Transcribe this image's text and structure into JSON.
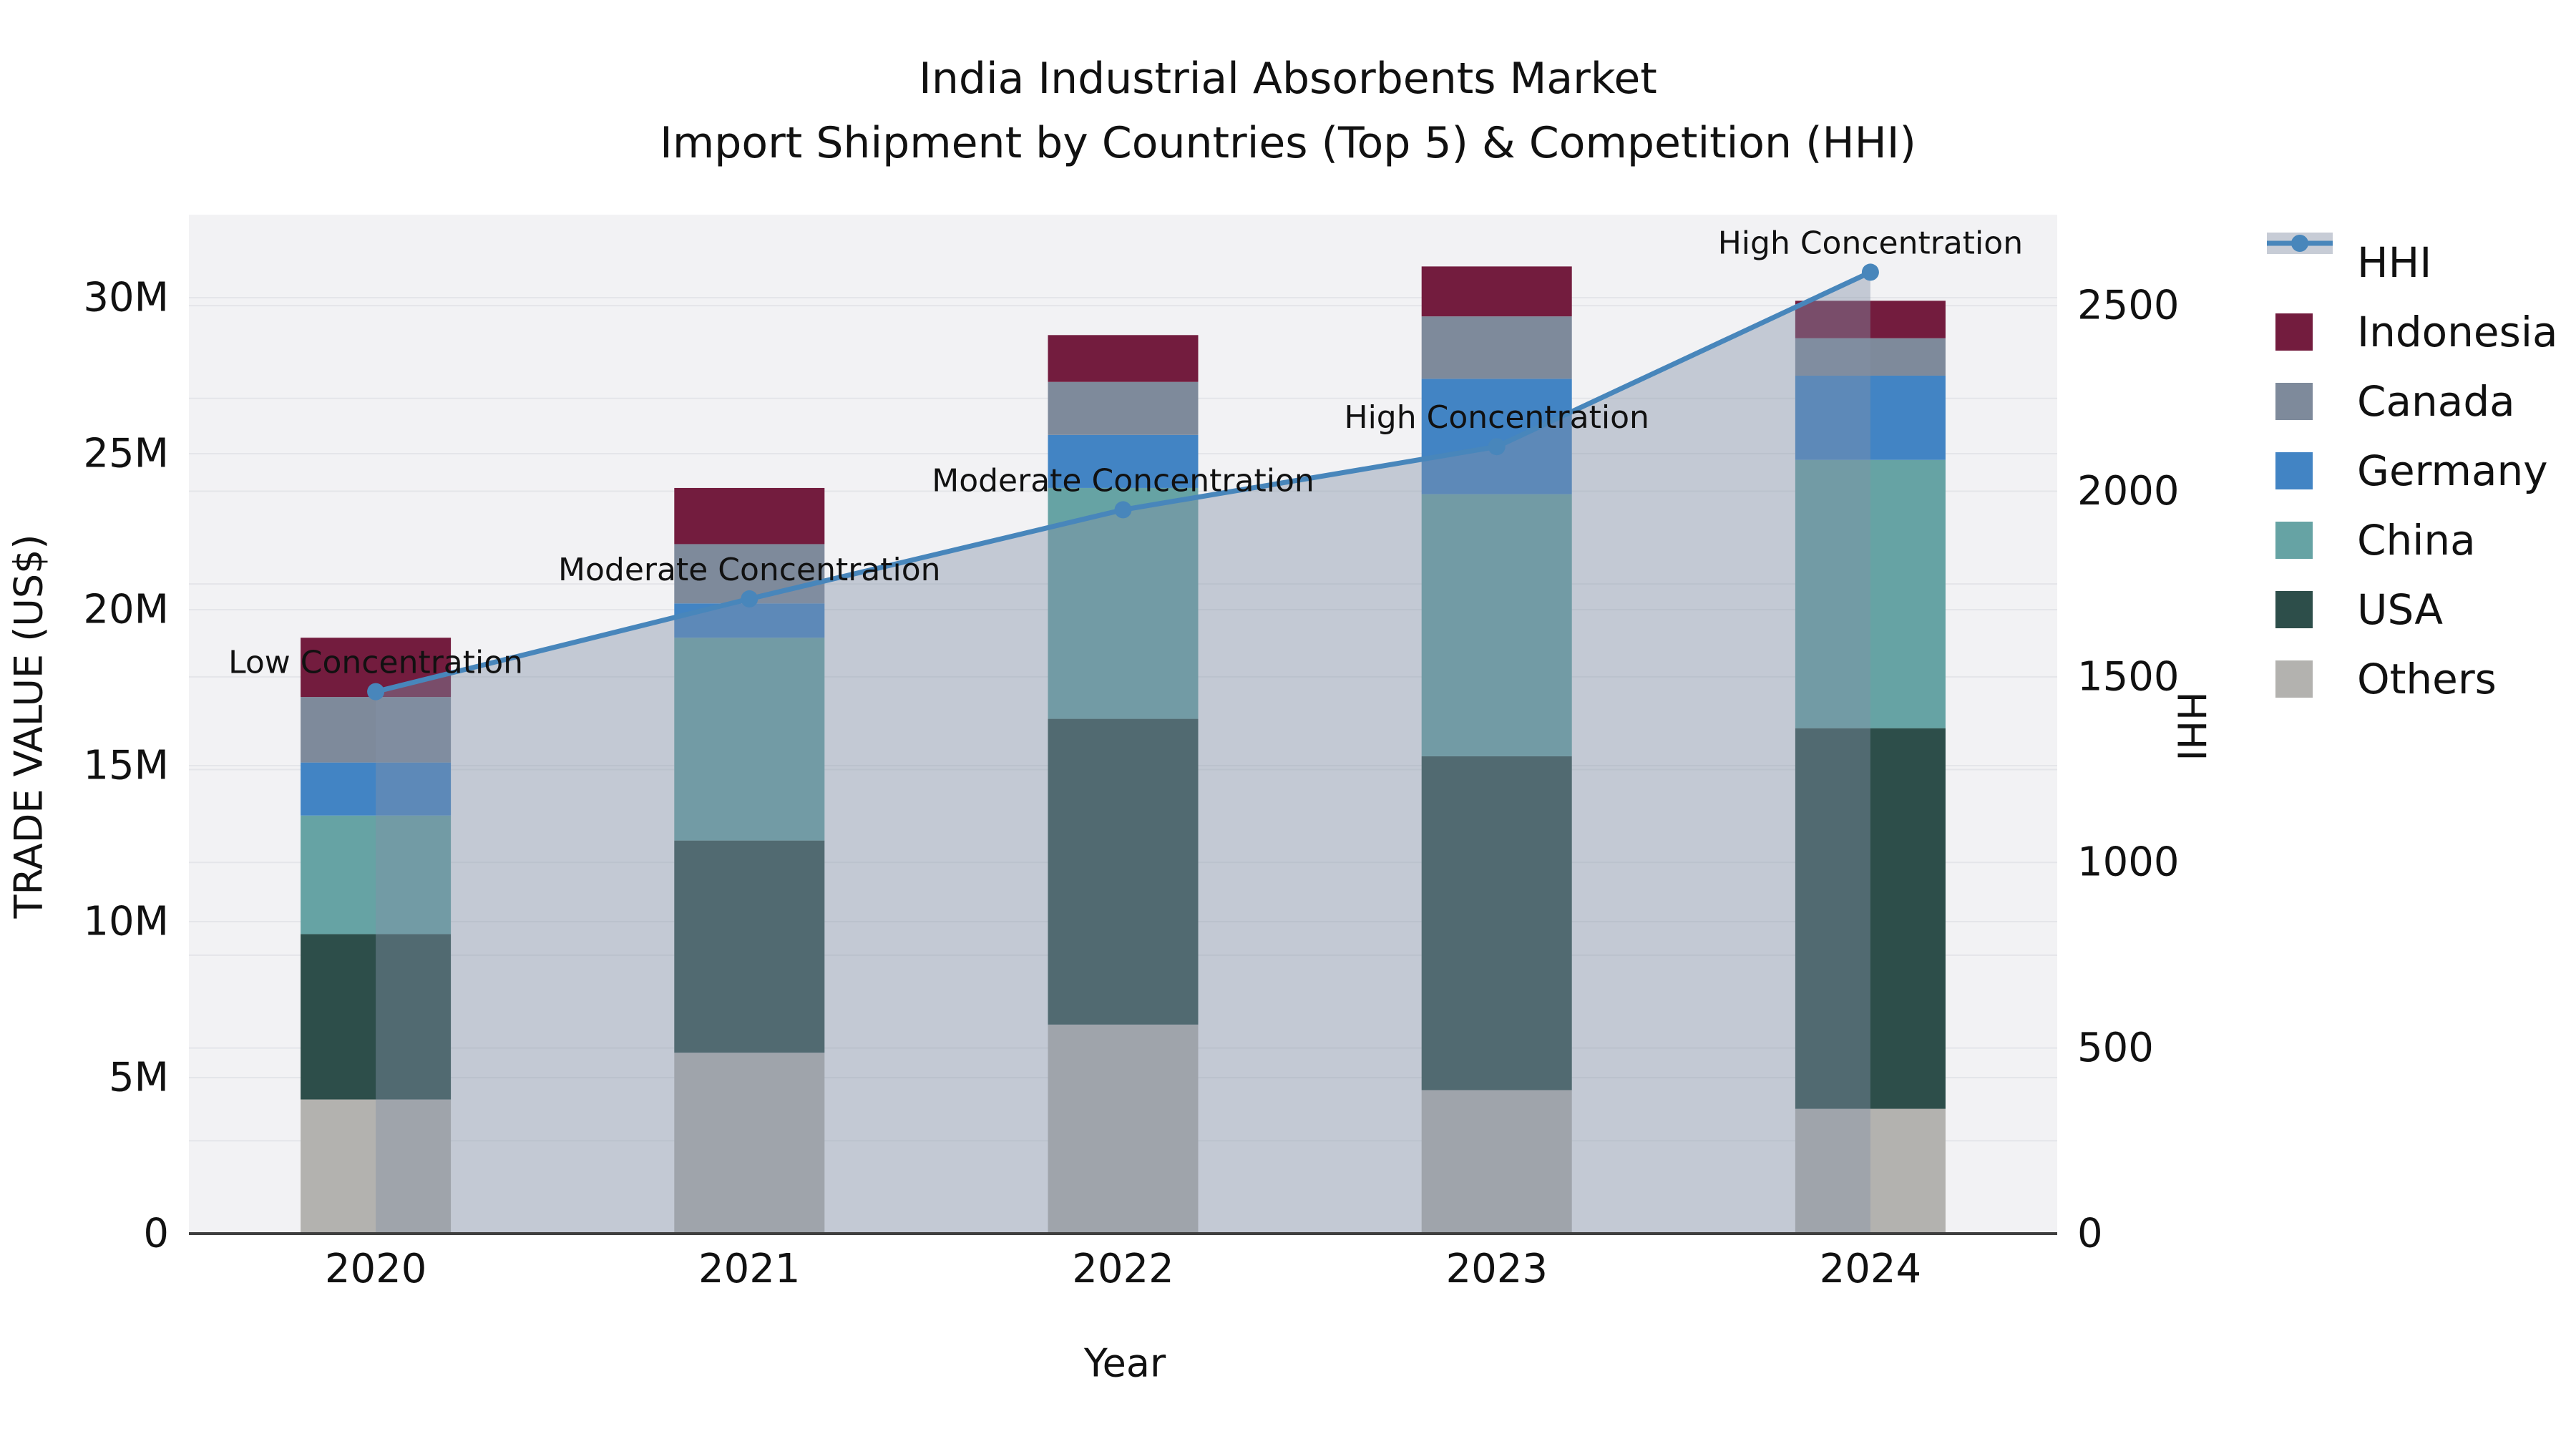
{
  "title": {
    "line1": "India Industrial Absorbents Market",
    "line2": "Import Shipment by Countries (Top 5) & Competition (HHI)"
  },
  "legend": {
    "items": [
      {
        "label": "HHI",
        "type": "line",
        "color": "#4886bb",
        "band_color": "#c7ccd6"
      },
      {
        "label": "Indonesia",
        "type": "patch",
        "color": "#731c3e"
      },
      {
        "label": "Canada",
        "type": "patch",
        "color": "#7e8a9b"
      },
      {
        "label": "Germany",
        "type": "patch",
        "color": "#4284c4"
      },
      {
        "label": "China",
        "type": "patch",
        "color": "#66a3a4"
      },
      {
        "label": "USA",
        "type": "patch",
        "color": "#2d4e4a"
      },
      {
        "label": "Others",
        "type": "patch",
        "color": "#b3b2af"
      }
    ]
  },
  "colors": {
    "plot_bg": "#f2f2f4",
    "grid": "#e4e5e9",
    "spine": "#3f3f3f",
    "text": "#111111",
    "hhi_line": "#4886bb",
    "hhi_area": "rgba(132,146,166,0.42)"
  },
  "chart_data": {
    "type": "bar",
    "subtype": "stacked-bars-with-line-overlay-and-area",
    "title": "India Industrial Absorbents Market — Import Shipment by Countries (Top 5) & Competition (HHI)",
    "categories": [
      "2020",
      "2021",
      "2022",
      "2023",
      "2024"
    ],
    "value_unit": "million US$",
    "series": [
      {
        "name": "Others",
        "color": "#b3b2af",
        "values": [
          4.3,
          5.8,
          6.7,
          4.6,
          4.0
        ]
      },
      {
        "name": "USA",
        "color": "#2d4e4a",
        "values": [
          5.3,
          6.8,
          9.8,
          10.7,
          12.2
        ]
      },
      {
        "name": "China",
        "color": "#66a3a4",
        "values": [
          3.8,
          6.5,
          7.4,
          8.4,
          8.6
        ]
      },
      {
        "name": "Germany",
        "color": "#4284c4",
        "values": [
          1.7,
          1.1,
          1.7,
          3.7,
          2.7
        ]
      },
      {
        "name": "Canada",
        "color": "#7e8a9b",
        "values": [
          2.1,
          1.9,
          1.7,
          2.0,
          1.2
        ]
      },
      {
        "name": "Indonesia",
        "color": "#731c3e",
        "values": [
          1.9,
          1.8,
          1.5,
          1.6,
          1.2
        ]
      }
    ],
    "bar_totals": [
      19.1,
      23.9,
      28.8,
      31.0,
      29.9
    ],
    "line": {
      "name": "HHI",
      "axis": "right",
      "values": [
        1460,
        1710,
        1950,
        2120,
        2590
      ],
      "area": true
    },
    "annotations": [
      {
        "category": "2020",
        "text": "Low Concentration"
      },
      {
        "category": "2021",
        "text": "Moderate Concentration"
      },
      {
        "category": "2022",
        "text": "Moderate Concentration"
      },
      {
        "category": "2023",
        "text": "High Concentration"
      },
      {
        "category": "2024",
        "text": "High Concentration"
      }
    ],
    "x_axis": {
      "title": "Year"
    },
    "left_axis": {
      "title": "TRADE VALUE (US$)",
      "ticks": [
        "0",
        "5M",
        "10M",
        "15M",
        "20M",
        "25M",
        "30M"
      ],
      "tick_values": [
        0,
        5,
        10,
        15,
        20,
        25,
        30
      ],
      "max": 32.66
    },
    "right_axis": {
      "title": "HHI",
      "ticks": [
        "0",
        "500",
        "1000",
        "1500",
        "2000",
        "2500"
      ],
      "tick_values": [
        0,
        500,
        1000,
        1500,
        2000,
        2500
      ],
      "max": 2745
    },
    "grid": {
      "left_step": 5,
      "right_step": 250,
      "legend_position": "right-outside"
    }
  }
}
